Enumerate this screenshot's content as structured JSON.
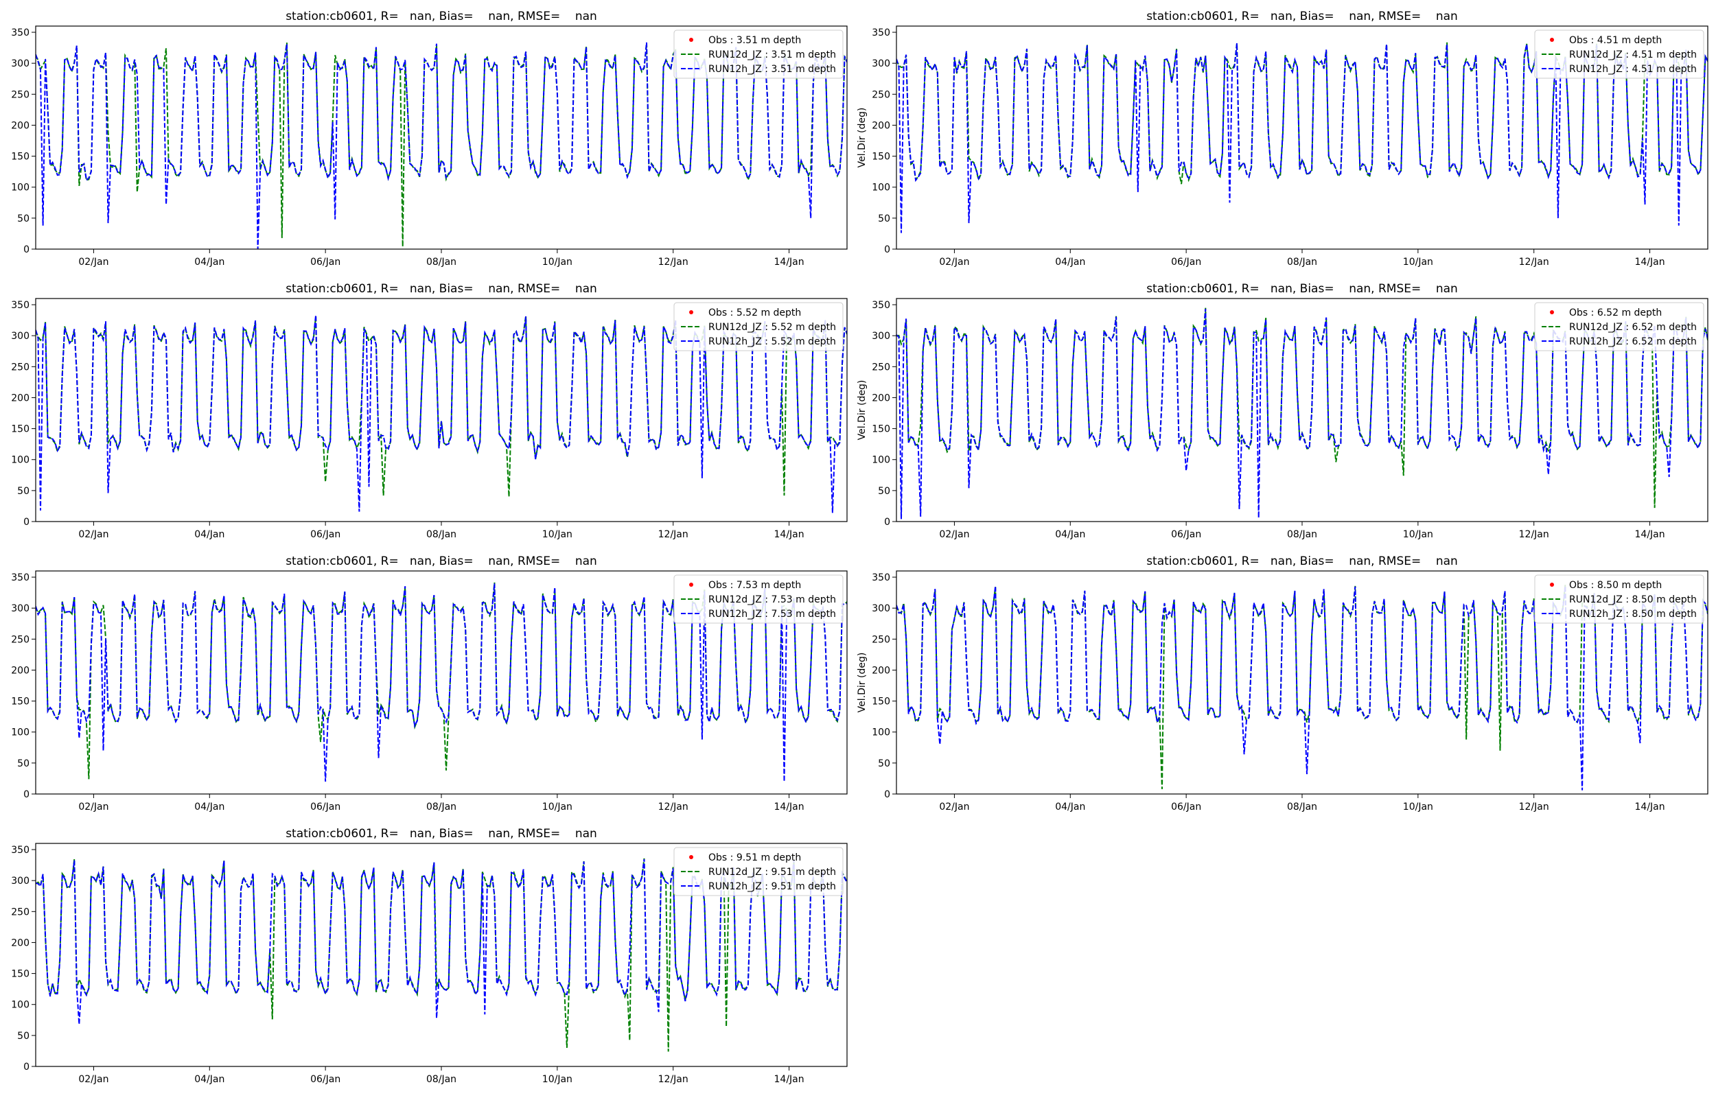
{
  "figure": {
    "background": "#ffffff"
  },
  "chart_data": [
    {
      "type": "line",
      "title": "station:cb0601, R=   nan, Bias=    nan, RMSE=    nan",
      "ylabel": "",
      "ylim": [
        0,
        360
      ],
      "yticks": [
        0,
        50,
        100,
        150,
        200,
        250,
        300,
        350
      ],
      "xlim": [
        "2020-01-01",
        "2020-01-15"
      ],
      "xticks": [
        {
          "x": "2020-01-02",
          "label": "02/Jan"
        },
        {
          "x": "2020-01-04",
          "label": "04/Jan"
        },
        {
          "x": "2020-01-06",
          "label": "06/Jan"
        },
        {
          "x": "2020-01-08",
          "label": "08/Jan"
        },
        {
          "x": "2020-01-10",
          "label": "10/Jan"
        },
        {
          "x": "2020-01-12",
          "label": "12/Jan"
        },
        {
          "x": "2020-01-14",
          "label": "14/Jan"
        }
      ],
      "legend_position": "top-right",
      "series": [
        {
          "name": "Obs : 3.51 m depth",
          "style": "dot",
          "color": "#ff0000",
          "values": []
        },
        {
          "name": "RUN12d_JZ : 3.51 m depth",
          "style": "dashed",
          "color": "#008000",
          "spikes": [
            {
              "x": "2020-01-05T06:00",
              "y": 18
            },
            {
              "x": "2020-01-07T08:00",
              "y": 4
            },
            {
              "x": "2020-01-02T18:00",
              "y": 92
            },
            {
              "x": "2020-01-01T18:00",
              "y": 102
            }
          ]
        },
        {
          "name": "RUN12h_JZ : 3.51 m depth",
          "style": "dashed",
          "color": "#0000ff",
          "spikes": [
            {
              "x": "2020-01-01T03:00",
              "y": 38
            },
            {
              "x": "2020-01-04T20:00",
              "y": 0
            },
            {
              "x": "2020-01-14T09:00",
              "y": 50
            },
            {
              "x": "2020-01-02T06:00",
              "y": 42
            },
            {
              "x": "2020-01-06T04:00",
              "y": 48
            },
            {
              "x": "2020-01-03T06:00",
              "y": 72
            }
          ]
        }
      ]
    },
    {
      "type": "line",
      "title": "station:cb0601, R=   nan, Bias=    nan, RMSE=    nan",
      "ylabel": "Vel.Dir (deg)",
      "ylim": [
        0,
        360
      ],
      "yticks": [
        0,
        50,
        100,
        150,
        200,
        250,
        300,
        350
      ],
      "xlim": [
        "2020-01-01",
        "2020-01-15"
      ],
      "xticks": [
        {
          "x": "2020-01-02",
          "label": "02/Jan"
        },
        {
          "x": "2020-01-04",
          "label": "04/Jan"
        },
        {
          "x": "2020-01-06",
          "label": "06/Jan"
        },
        {
          "x": "2020-01-08",
          "label": "08/Jan"
        },
        {
          "x": "2020-01-10",
          "label": "10/Jan"
        },
        {
          "x": "2020-01-12",
          "label": "12/Jan"
        },
        {
          "x": "2020-01-14",
          "label": "14/Jan"
        }
      ],
      "legend_position": "top-right",
      "series": [
        {
          "name": "Obs : 4.51 m depth",
          "style": "dot",
          "color": "#ff0000",
          "values": []
        },
        {
          "name": "RUN12d_JZ : 4.51 m depth",
          "style": "dashed",
          "color": "#008000",
          "spikes": [
            {
              "x": "2020-01-05T22:00",
              "y": 105
            }
          ]
        },
        {
          "name": "RUN12h_JZ : 4.51 m depth",
          "style": "dashed",
          "color": "#0000ff",
          "spikes": [
            {
              "x": "2020-01-01T02:00",
              "y": 26
            },
            {
              "x": "2020-01-02T06:00",
              "y": 42
            },
            {
              "x": "2020-01-12T10:00",
              "y": 50
            },
            {
              "x": "2020-01-14T12:00",
              "y": 38
            },
            {
              "x": "2020-01-13T22:00",
              "y": 72
            },
            {
              "x": "2020-01-05T04:00",
              "y": 92
            },
            {
              "x": "2020-01-06T18:00",
              "y": 75
            }
          ]
        }
      ]
    },
    {
      "type": "line",
      "title": "station:cb0601, R=   nan, Bias=    nan, RMSE=    nan",
      "ylabel": "",
      "ylim": [
        0,
        360
      ],
      "yticks": [
        0,
        50,
        100,
        150,
        200,
        250,
        300,
        350
      ],
      "xlim": [
        "2020-01-01",
        "2020-01-15"
      ],
      "xticks": [
        {
          "x": "2020-01-02",
          "label": "02/Jan"
        },
        {
          "x": "2020-01-04",
          "label": "04/Jan"
        },
        {
          "x": "2020-01-06",
          "label": "06/Jan"
        },
        {
          "x": "2020-01-08",
          "label": "08/Jan"
        },
        {
          "x": "2020-01-10",
          "label": "10/Jan"
        },
        {
          "x": "2020-01-12",
          "label": "12/Jan"
        },
        {
          "x": "2020-01-14",
          "label": "14/Jan"
        }
      ],
      "legend_position": "top-right",
      "series": [
        {
          "name": "Obs : 5.52 m depth",
          "style": "dot",
          "color": "#ff0000",
          "values": []
        },
        {
          "name": "RUN12d_JZ : 5.52 m depth",
          "style": "dashed",
          "color": "#008000",
          "spikes": [
            {
              "x": "2020-01-09T04:00",
              "y": 40
            },
            {
              "x": "2020-01-06T00:00",
              "y": 64
            },
            {
              "x": "2020-01-07T00:00",
              "y": 42
            },
            {
              "x": "2020-01-13T22:00",
              "y": 42
            }
          ]
        },
        {
          "name": "RUN12h_JZ : 5.52 m depth",
          "style": "dashed",
          "color": "#0000ff",
          "spikes": [
            {
              "x": "2020-01-01T02:00",
              "y": 18
            },
            {
              "x": "2020-01-06T14:00",
              "y": 16
            },
            {
              "x": "2020-01-14T18:00",
              "y": 14
            },
            {
              "x": "2020-01-02T06:00",
              "y": 46
            },
            {
              "x": "2020-01-06T18:00",
              "y": 56
            },
            {
              "x": "2020-01-12T12:00",
              "y": 70
            }
          ]
        }
      ]
    },
    {
      "type": "line",
      "title": "station:cb0601, R=   nan, Bias=    nan, RMSE=    nan",
      "ylabel": "Vel.Dir (deg)",
      "ylim": [
        0,
        360
      ],
      "yticks": [
        0,
        50,
        100,
        150,
        200,
        250,
        300,
        350
      ],
      "xlim": [
        "2020-01-01",
        "2020-01-15"
      ],
      "xticks": [
        {
          "x": "2020-01-02",
          "label": "02/Jan"
        },
        {
          "x": "2020-01-04",
          "label": "04/Jan"
        },
        {
          "x": "2020-01-06",
          "label": "06/Jan"
        },
        {
          "x": "2020-01-08",
          "label": "08/Jan"
        },
        {
          "x": "2020-01-10",
          "label": "10/Jan"
        },
        {
          "x": "2020-01-12",
          "label": "12/Jan"
        },
        {
          "x": "2020-01-14",
          "label": "14/Jan"
        }
      ],
      "legend_position": "top-right",
      "series": [
        {
          "name": "Obs : 6.52 m depth",
          "style": "dot",
          "color": "#ff0000",
          "values": []
        },
        {
          "name": "RUN12d_JZ : 6.52 m depth",
          "style": "dashed",
          "color": "#008000",
          "spikes": [
            {
              "x": "2020-01-14T02:00",
              "y": 22
            },
            {
              "x": "2020-01-09T18:00",
              "y": 74
            },
            {
              "x": "2020-01-08T14:00",
              "y": 96
            }
          ]
        },
        {
          "name": "RUN12h_JZ : 6.52 m depth",
          "style": "dashed",
          "color": "#0000ff",
          "spikes": [
            {
              "x": "2020-01-01T02:00",
              "y": 4
            },
            {
              "x": "2020-01-01T10:00",
              "y": 8
            },
            {
              "x": "2020-01-07T06:00",
              "y": 6
            },
            {
              "x": "2020-01-06T00:00",
              "y": 82
            },
            {
              "x": "2020-01-02T06:00",
              "y": 54
            },
            {
              "x": "2020-01-06T22:00",
              "y": 20
            },
            {
              "x": "2020-01-12T06:00",
              "y": 76
            },
            {
              "x": "2020-01-14T08:00",
              "y": 72
            }
          ]
        }
      ]
    },
    {
      "type": "line",
      "title": "station:cb0601, R=   nan, Bias=    nan, RMSE=    nan",
      "ylabel": "",
      "ylim": [
        0,
        360
      ],
      "yticks": [
        0,
        50,
        100,
        150,
        200,
        250,
        300,
        350
      ],
      "xlim": [
        "2020-01-01",
        "2020-01-15"
      ],
      "xticks": [
        {
          "x": "2020-01-02",
          "label": "02/Jan"
        },
        {
          "x": "2020-01-04",
          "label": "04/Jan"
        },
        {
          "x": "2020-01-06",
          "label": "06/Jan"
        },
        {
          "x": "2020-01-08",
          "label": "08/Jan"
        },
        {
          "x": "2020-01-10",
          "label": "10/Jan"
        },
        {
          "x": "2020-01-12",
          "label": "12/Jan"
        },
        {
          "x": "2020-01-14",
          "label": "14/Jan"
        }
      ],
      "legend_position": "top-right",
      "series": [
        {
          "name": "Obs : 7.53 m depth",
          "style": "dot",
          "color": "#ff0000",
          "values": []
        },
        {
          "name": "RUN12d_JZ : 7.53 m depth",
          "style": "dashed",
          "color": "#008000",
          "spikes": [
            {
              "x": "2020-01-01T22:00",
              "y": 24
            },
            {
              "x": "2020-01-08T02:00",
              "y": 38
            },
            {
              "x": "2020-01-05T22:00",
              "y": 84
            }
          ]
        },
        {
          "name": "RUN12h_JZ : 7.53 m depth",
          "style": "dashed",
          "color": "#0000ff",
          "spikes": [
            {
              "x": "2020-01-06T00:00",
              "y": 20
            },
            {
              "x": "2020-01-13T22:00",
              "y": 20
            },
            {
              "x": "2020-01-02T04:00",
              "y": 70
            },
            {
              "x": "2020-01-06T22:00",
              "y": 58
            },
            {
              "x": "2020-01-01T18:00",
              "y": 90
            },
            {
              "x": "2020-01-12T12:00",
              "y": 88
            }
          ]
        }
      ]
    },
    {
      "type": "line",
      "title": "station:cb0601, R=   nan, Bias=    nan, RMSE=    nan",
      "ylabel": "Vel.Dir (deg)",
      "ylim": [
        0,
        360
      ],
      "yticks": [
        0,
        50,
        100,
        150,
        200,
        250,
        300,
        350
      ],
      "xlim": [
        "2020-01-01",
        "2020-01-15"
      ],
      "xticks": [
        {
          "x": "2020-01-02",
          "label": "02/Jan"
        },
        {
          "x": "2020-01-04",
          "label": "04/Jan"
        },
        {
          "x": "2020-01-06",
          "label": "06/Jan"
        },
        {
          "x": "2020-01-08",
          "label": "08/Jan"
        },
        {
          "x": "2020-01-10",
          "label": "10/Jan"
        },
        {
          "x": "2020-01-12",
          "label": "12/Jan"
        },
        {
          "x": "2020-01-14",
          "label": "14/Jan"
        }
      ],
      "legend_position": "top-right",
      "series": [
        {
          "name": "Obs : 8.50 m depth",
          "style": "dot",
          "color": "#ff0000",
          "values": []
        },
        {
          "name": "RUN12d_JZ : 8.50 m depth",
          "style": "dashed",
          "color": "#008000",
          "spikes": [
            {
              "x": "2020-01-05T14:00",
              "y": 8
            },
            {
              "x": "2020-01-11T10:00",
              "y": 70
            },
            {
              "x": "2020-01-10T20:00",
              "y": 88
            }
          ]
        },
        {
          "name": "RUN12h_JZ : 8.50 m depth",
          "style": "dashed",
          "color": "#0000ff",
          "spikes": [
            {
              "x": "2020-01-12T20:00",
              "y": 6
            },
            {
              "x": "2020-01-08T02:00",
              "y": 32
            },
            {
              "x": "2020-01-07T00:00",
              "y": 64
            },
            {
              "x": "2020-01-01T18:00",
              "y": 80
            },
            {
              "x": "2020-01-13T20:00",
              "y": 82
            }
          ]
        }
      ]
    },
    {
      "type": "line",
      "title": "station:cb0601, R=   nan, Bias=    nan, RMSE=    nan",
      "ylabel": "",
      "ylim": [
        0,
        360
      ],
      "yticks": [
        0,
        50,
        100,
        150,
        200,
        250,
        300,
        350
      ],
      "xlim": [
        "2020-01-01",
        "2020-01-15"
      ],
      "xticks": [
        {
          "x": "2020-01-02",
          "label": "02/Jan"
        },
        {
          "x": "2020-01-04",
          "label": "04/Jan"
        },
        {
          "x": "2020-01-06",
          "label": "06/Jan"
        },
        {
          "x": "2020-01-08",
          "label": "08/Jan"
        },
        {
          "x": "2020-01-10",
          "label": "10/Jan"
        },
        {
          "x": "2020-01-12",
          "label": "12/Jan"
        },
        {
          "x": "2020-01-14",
          "label": "14/Jan"
        }
      ],
      "legend_position": "top-right",
      "series": [
        {
          "name": "Obs : 9.51 m depth",
          "style": "dot",
          "color": "#ff0000",
          "values": []
        },
        {
          "name": "RUN12d_JZ : 9.51 m depth",
          "style": "dashed",
          "color": "#008000",
          "spikes": [
            {
              "x": "2020-01-10T04:00",
              "y": 30
            },
            {
              "x": "2020-01-11T22:00",
              "y": 24
            },
            {
              "x": "2020-01-11T06:00",
              "y": 42
            },
            {
              "x": "2020-01-12T22:00",
              "y": 64
            },
            {
              "x": "2020-01-05T02:00",
              "y": 76
            }
          ]
        },
        {
          "name": "RUN12h_JZ : 9.51 m depth",
          "style": "dashed",
          "color": "#0000ff",
          "spikes": [
            {
              "x": "2020-01-01T18:00",
              "y": 68
            },
            {
              "x": "2020-01-07T22:00",
              "y": 78
            },
            {
              "x": "2020-01-08T18:00",
              "y": 84
            },
            {
              "x": "2020-01-11T18:00",
              "y": 88
            }
          ]
        }
      ]
    }
  ]
}
